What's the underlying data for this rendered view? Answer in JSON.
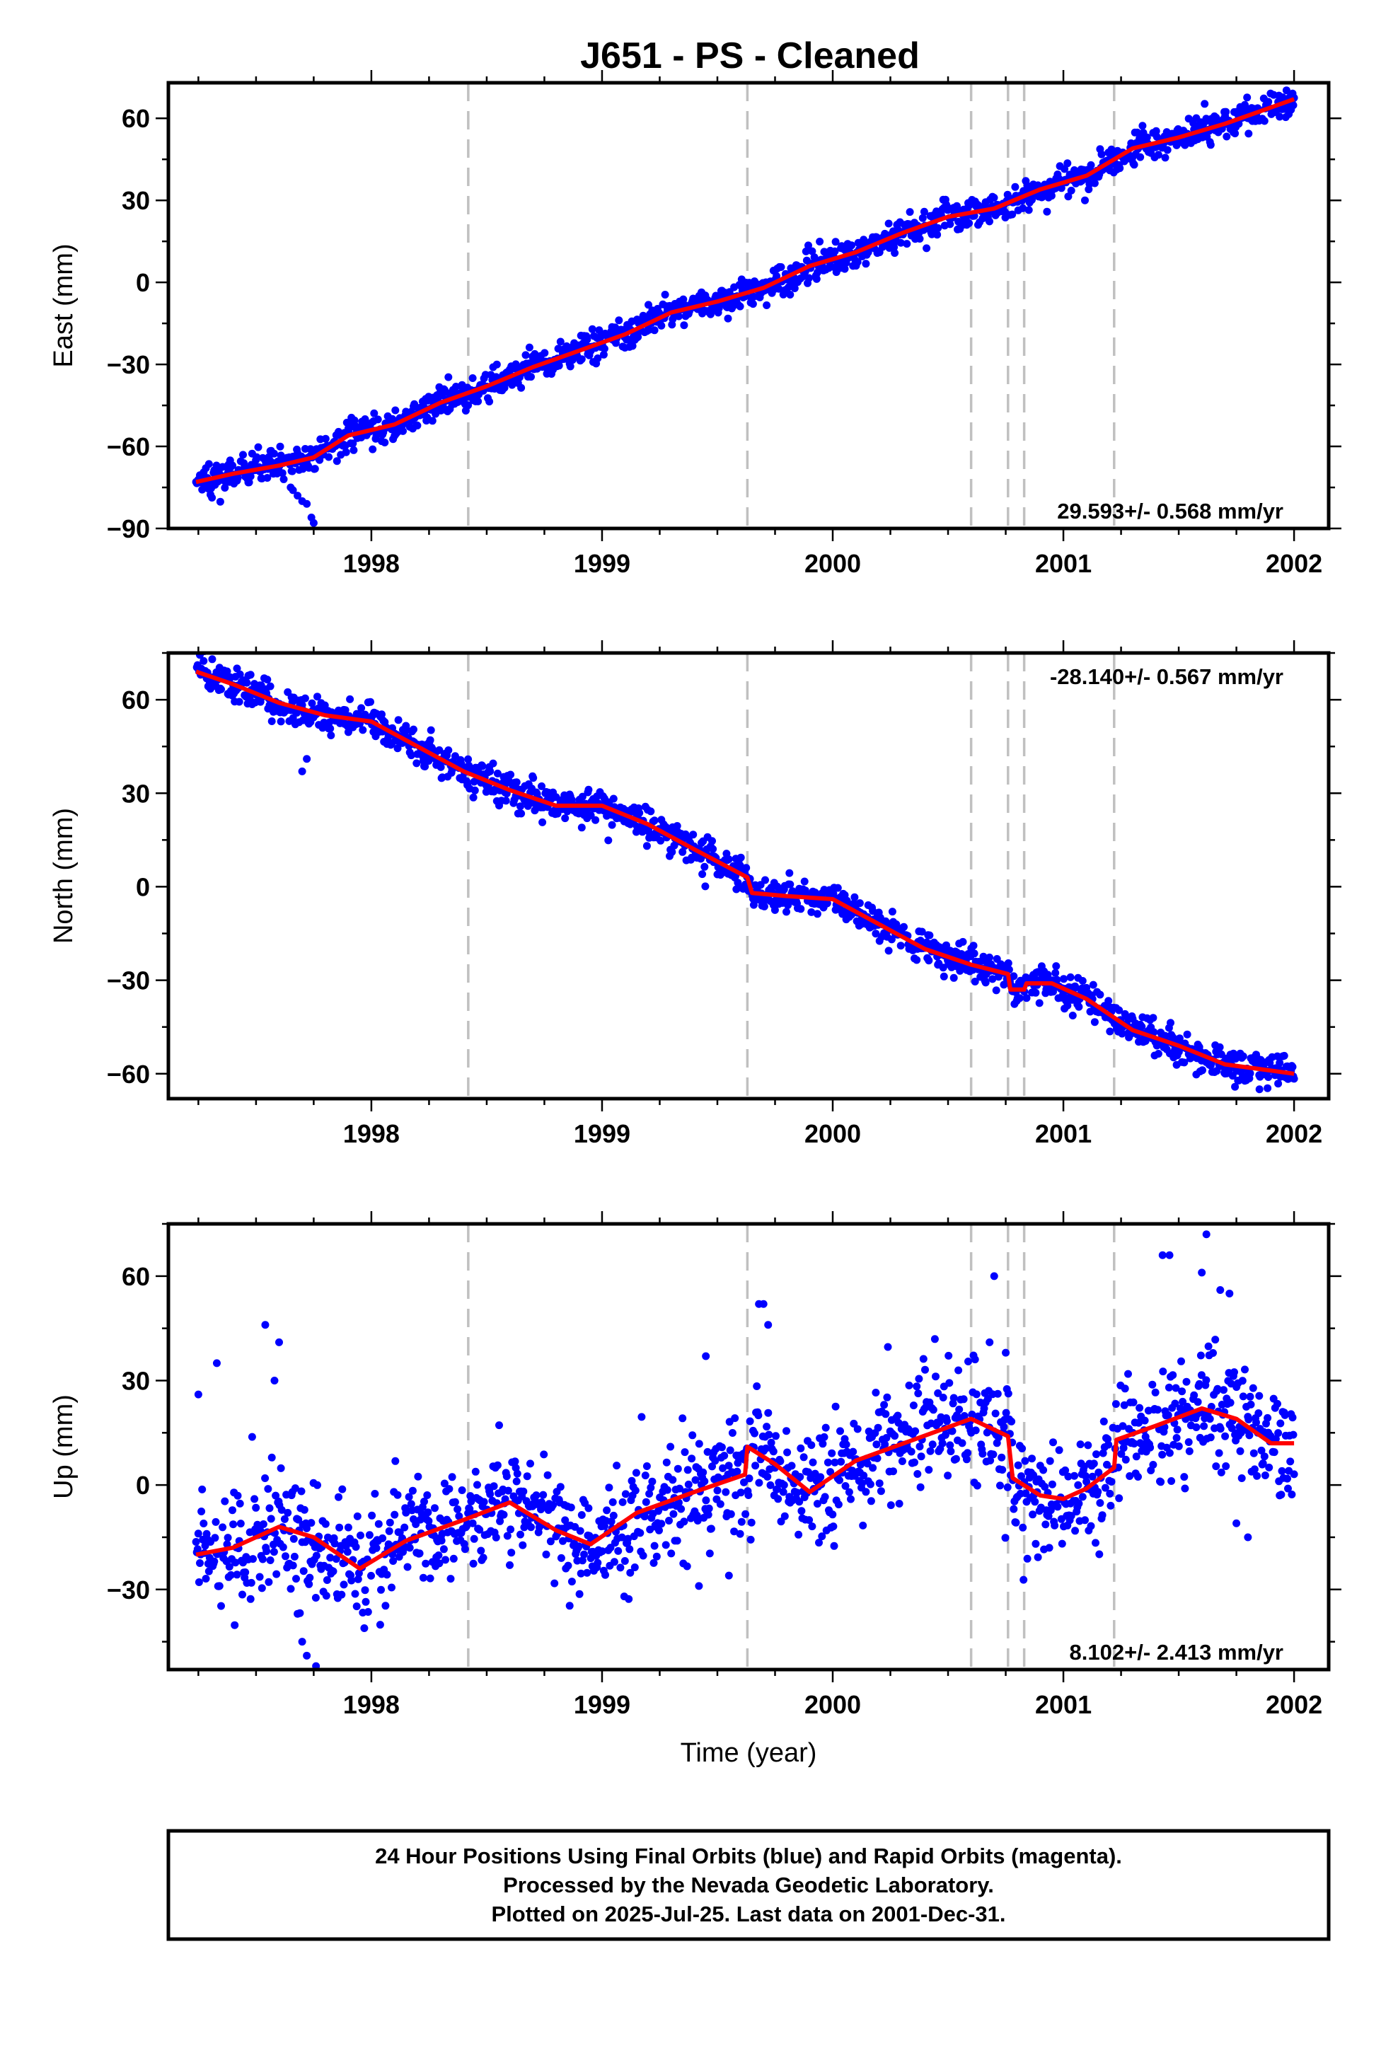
{
  "title": "J651  - PS - Cleaned",
  "x_axis_label": "Time (year)",
  "footer": {
    "lines": [
      "24 Hour Positions Using Final Orbits (blue) and Rapid Orbits (magenta).",
      "Processed by the Nevada Geodetic Laboratory.",
      "Plotted on 2025-Jul-25. Last data on 2001-Dec-31."
    ]
  },
  "colors": {
    "points": "#0000ff",
    "model": "#ff0000",
    "events": "#c0c0c0"
  },
  "chart_data": [
    {
      "type": "scatter",
      "name": "east",
      "ylabel": "East (mm)",
      "rate_text": "29.593+/- 0.568 mm/yr",
      "rate_position": "bottom-right",
      "xlim": [
        1997.12,
        2002.15
      ],
      "ylim": [
        -90,
        73
      ],
      "xticks": [
        1998,
        1999,
        2000,
        2001,
        2002
      ],
      "yticks": [
        -90,
        -60,
        -30,
        0,
        30,
        60
      ],
      "ytick_labels": [
        "−90",
        "−60",
        "−30",
        "0",
        "30",
        "60"
      ],
      "data_start": 1997.24,
      "data_end": 2002.0,
      "event_lines": [
        1998.42,
        1999.63,
        2000.6,
        2000.76,
        2000.83,
        2001.22
      ],
      "model": [
        [
          1997.24,
          -73
        ],
        [
          1997.4,
          -70
        ],
        [
          1997.6,
          -67
        ],
        [
          1997.75,
          -64
        ],
        [
          1997.9,
          -56
        ],
        [
          1998.1,
          -52
        ],
        [
          1998.3,
          -44
        ],
        [
          1998.5,
          -38
        ],
        [
          1998.7,
          -31
        ],
        [
          1998.9,
          -25
        ],
        [
          1999.1,
          -19
        ],
        [
          1999.3,
          -11
        ],
        [
          1999.5,
          -7
        ],
        [
          1999.7,
          -2
        ],
        [
          1999.9,
          6
        ],
        [
          2000.1,
          11
        ],
        [
          2000.3,
          18
        ],
        [
          2000.5,
          24
        ],
        [
          2000.7,
          27
        ],
        [
          2000.9,
          34
        ],
        [
          2001.1,
          39
        ],
        [
          2001.3,
          49
        ],
        [
          2001.5,
          53
        ],
        [
          2001.7,
          58
        ],
        [
          2001.9,
          64
        ],
        [
          2002.0,
          67
        ]
      ],
      "scatter_sd": 2.8,
      "anomalies": [
        [
          1997.65,
          -75
        ],
        [
          1997.68,
          -78
        ],
        [
          1997.7,
          -80
        ],
        [
          1997.72,
          -81
        ],
        [
          1997.74,
          -86
        ],
        [
          1997.75,
          -88
        ],
        [
          1997.62,
          -72
        ],
        [
          1997.66,
          -76
        ]
      ]
    },
    {
      "type": "scatter",
      "name": "north",
      "ylabel": "North (mm)",
      "rate_text": "-28.140+/- 0.567 mm/yr",
      "rate_position": "top-right",
      "xlim": [
        1997.12,
        2002.15
      ],
      "ylim": [
        -68,
        75
      ],
      "xticks": [
        1998,
        1999,
        2000,
        2001,
        2002
      ],
      "yticks": [
        -60,
        -30,
        0,
        30,
        60
      ],
      "ytick_labels": [
        "−60",
        "−30",
        "0",
        "30",
        "60"
      ],
      "data_start": 1997.24,
      "data_end": 2002.0,
      "event_lines": [
        1998.42,
        1999.63,
        2000.6,
        2000.76,
        2000.83,
        2001.22
      ],
      "model": [
        [
          1997.24,
          69
        ],
        [
          1997.4,
          65
        ],
        [
          1997.6,
          59
        ],
        [
          1997.8,
          55
        ],
        [
          1998.0,
          53
        ],
        [
          1998.2,
          45
        ],
        [
          1998.4,
          37
        ],
        [
          1998.6,
          31
        ],
        [
          1998.8,
          26
        ],
        [
          1999.0,
          26
        ],
        [
          1999.2,
          20
        ],
        [
          1999.4,
          12
        ],
        [
          1999.63,
          3
        ],
        [
          1999.65,
          -2
        ],
        [
          1999.8,
          -3
        ],
        [
          2000.0,
          -4
        ],
        [
          2000.2,
          -12
        ],
        [
          2000.4,
          -20
        ],
        [
          2000.6,
          -25
        ],
        [
          2000.76,
          -28
        ],
        [
          2000.77,
          -33
        ],
        [
          2000.83,
          -33
        ],
        [
          2000.84,
          -31
        ],
        [
          2000.95,
          -31
        ],
        [
          2001.1,
          -36
        ],
        [
          2001.3,
          -46
        ],
        [
          2001.5,
          -51
        ],
        [
          2001.7,
          -57
        ],
        [
          2001.9,
          -59
        ],
        [
          2002.0,
          -60
        ]
      ],
      "scatter_sd": 2.6,
      "anomalies": [
        [
          1997.31,
          73
        ],
        [
          1997.7,
          37
        ],
        [
          1997.72,
          41
        ],
        [
          1999.58,
          9
        ],
        [
          2001.85,
          -65
        ]
      ]
    },
    {
      "type": "scatter",
      "name": "up",
      "ylabel": "Up (mm)",
      "rate_text": "8.102+/- 2.413 mm/yr",
      "rate_position": "bottom-right",
      "xlim": [
        1997.12,
        2002.15
      ],
      "ylim": [
        -53,
        75
      ],
      "xticks": [
        1998,
        1999,
        2000,
        2001,
        2002
      ],
      "yticks": [
        -30,
        0,
        30,
        60
      ],
      "ytick_labels": [
        "−30",
        "0",
        "30",
        "60"
      ],
      "data_start": 1997.24,
      "data_end": 2002.0,
      "event_lines": [
        1998.42,
        1999.63,
        2000.6,
        2000.76,
        2000.83,
        2001.22
      ],
      "model": [
        [
          1997.24,
          -20
        ],
        [
          1997.4,
          -18
        ],
        [
          1997.6,
          -12
        ],
        [
          1997.75,
          -15
        ],
        [
          1997.95,
          -24
        ],
        [
          1998.15,
          -16
        ],
        [
          1998.4,
          -10
        ],
        [
          1998.6,
          -5
        ],
        [
          1998.8,
          -13
        ],
        [
          1998.95,
          -17
        ],
        [
          1999.15,
          -8
        ],
        [
          1999.4,
          -2
        ],
        [
          1999.62,
          3
        ],
        [
          1999.63,
          11
        ],
        [
          1999.75,
          6
        ],
        [
          1999.9,
          -2
        ],
        [
          2000.1,
          7
        ],
        [
          2000.35,
          13
        ],
        [
          2000.6,
          19
        ],
        [
          2000.76,
          14
        ],
        [
          2000.78,
          2
        ],
        [
          2000.9,
          -3
        ],
        [
          2001.0,
          -4
        ],
        [
          2001.1,
          -1
        ],
        [
          2001.22,
          5
        ],
        [
          2001.23,
          13
        ],
        [
          2001.4,
          17
        ],
        [
          2001.6,
          22
        ],
        [
          2001.75,
          19
        ],
        [
          2001.9,
          12
        ],
        [
          2002.0,
          12
        ]
      ],
      "scatter_sd": 8.5,
      "anomalies": [
        [
          1997.54,
          46
        ],
        [
          1997.6,
          41
        ],
        [
          1997.58,
          30
        ],
        [
          1997.25,
          26
        ],
        [
          1997.33,
          35
        ],
        [
          1999.45,
          37
        ],
        [
          1999.68,
          52
        ],
        [
          1999.7,
          52
        ],
        [
          1999.72,
          46
        ],
        [
          2000.75,
          38
        ],
        [
          2000.7,
          60
        ],
        [
          2000.68,
          41
        ],
        [
          2001.43,
          66
        ],
        [
          2001.46,
          66
        ],
        [
          2001.62,
          72
        ],
        [
          2001.6,
          61
        ],
        [
          2001.68,
          56
        ],
        [
          2001.72,
          55
        ],
        [
          1997.72,
          -49
        ],
        [
          1997.76,
          -52
        ],
        [
          1997.7,
          -45
        ],
        [
          2001.75,
          -11
        ],
        [
          2001.8,
          -15
        ],
        [
          1999.55,
          -26
        ],
        [
          1999.42,
          -29
        ]
      ]
    }
  ]
}
